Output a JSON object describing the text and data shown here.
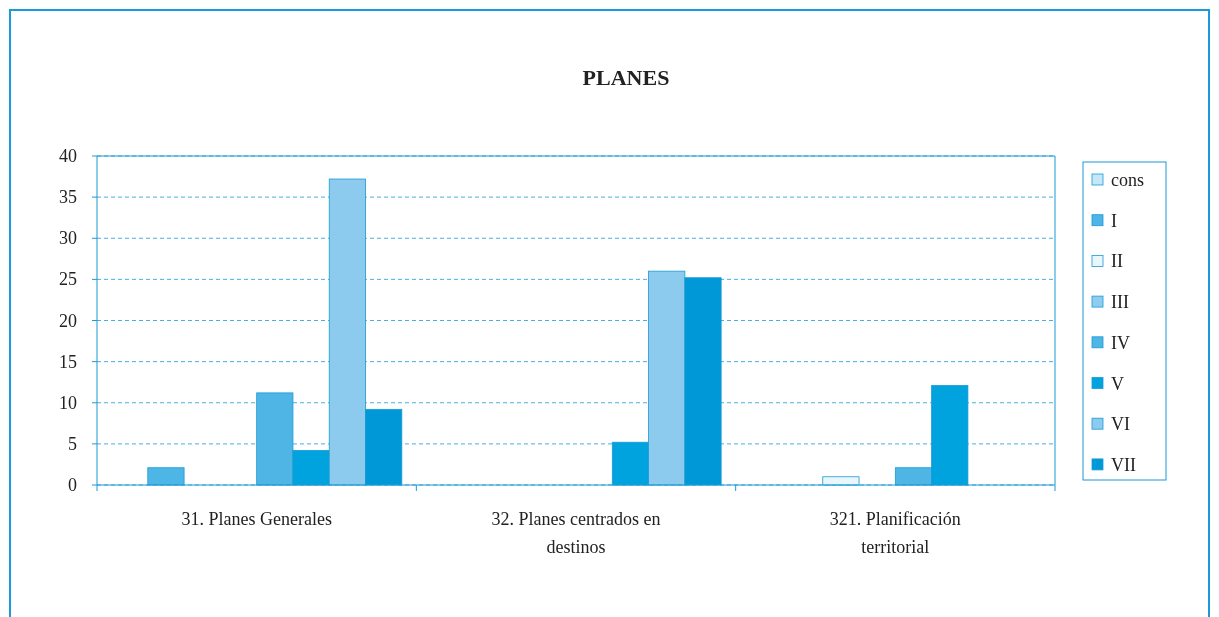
{
  "chart_data": {
    "type": "bar",
    "title": "PLANES",
    "categories": [
      "31. Planes Generales",
      "32. Planes centrados en destinos",
      "321. Planificación territorial"
    ],
    "series": [
      {
        "name": "cons",
        "color": "#c6e7f7",
        "values": [
          0,
          0,
          0
        ]
      },
      {
        "name": "I",
        "color": "#4db6e6",
        "values": [
          2.1,
          0,
          0
        ]
      },
      {
        "name": "II",
        "color": "#e9f6fc",
        "values": [
          0,
          0,
          1
        ]
      },
      {
        "name": "III",
        "color": "#8ecdee",
        "values": [
          0,
          0,
          0
        ]
      },
      {
        "name": "IV",
        "color": "#4fb5e5",
        "values": [
          11.2,
          0,
          2.1
        ]
      },
      {
        "name": "V",
        "color": "#00a3dd",
        "values": [
          4.2,
          5.2,
          12.1
        ]
      },
      {
        "name": "VI",
        "color": "#8ccbee",
        "values": [
          37.2,
          26,
          0
        ]
      },
      {
        "name": "VII",
        "color": "#0098d6",
        "values": [
          9.2,
          25.2,
          0
        ]
      }
    ],
    "ylim": [
      0,
      40
    ],
    "yticks": [
      0,
      5,
      10,
      15,
      20,
      25,
      30,
      35,
      40
    ],
    "grid": "y",
    "legend": "right"
  }
}
